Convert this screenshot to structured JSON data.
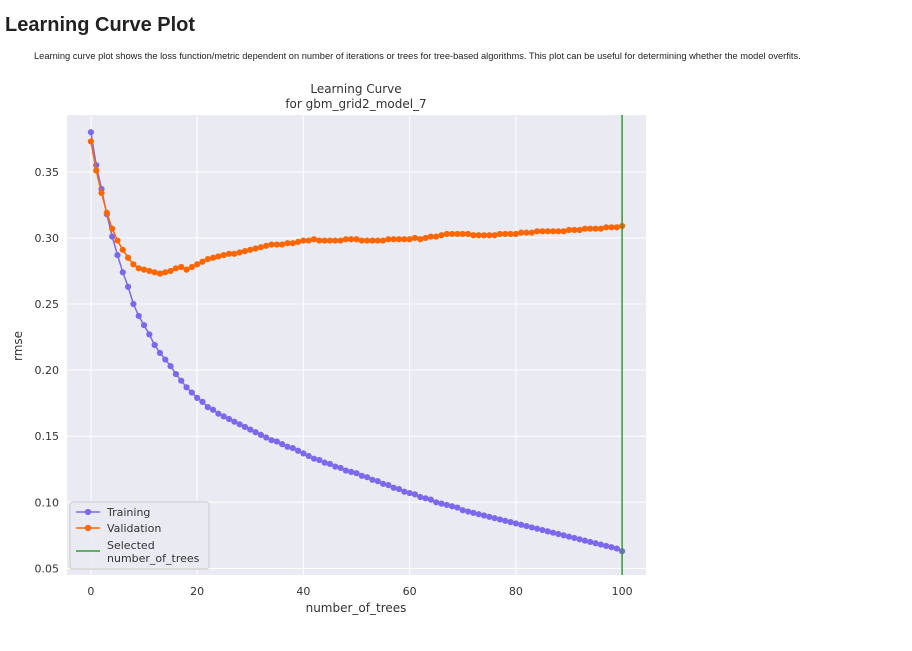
{
  "page": {
    "title": "Learning Curve Plot",
    "description": "Learning curve plot shows the loss function/metric dependent on number of iterations or trees for tree-based algorithms. This plot can be useful for determining whether the model overfits."
  },
  "chart_data": {
    "type": "line",
    "title": "Learning Curve",
    "subtitle": "for gbm_grid2_model_7",
    "xlabel": "number_of_trees",
    "ylabel": "rmse",
    "xlim": [
      -4.5,
      104.5
    ],
    "ylim": [
      0.045,
      0.393
    ],
    "xticks": [
      "0",
      "20",
      "40",
      "60",
      "80",
      "100"
    ],
    "yticks": [
      "0.05",
      "0.10",
      "0.15",
      "0.20",
      "0.25",
      "0.30",
      "0.35"
    ],
    "grid": true,
    "legend_position": "bottom-left",
    "selected_line": {
      "name": "Selected\nnumber_of_trees",
      "x": 100,
      "color": "#2ca02c"
    },
    "series": [
      {
        "name": "Training",
        "color": "#7b68ee",
        "x": [
          0,
          1,
          2,
          3,
          4,
          5,
          6,
          7,
          8,
          9,
          10,
          11,
          12,
          13,
          14,
          15,
          16,
          17,
          18,
          19,
          20,
          21,
          22,
          23,
          24,
          25,
          26,
          27,
          28,
          29,
          30,
          31,
          32,
          33,
          34,
          35,
          36,
          37,
          38,
          39,
          40,
          41,
          42,
          43,
          44,
          45,
          46,
          47,
          48,
          49,
          50,
          51,
          52,
          53,
          54,
          55,
          56,
          57,
          58,
          59,
          60,
          61,
          62,
          63,
          64,
          65,
          66,
          67,
          68,
          69,
          70,
          71,
          72,
          73,
          74,
          75,
          76,
          77,
          78,
          79,
          80,
          81,
          82,
          83,
          84,
          85,
          86,
          87,
          88,
          89,
          90,
          91,
          92,
          93,
          94,
          95,
          96,
          97,
          98,
          99,
          100
        ],
        "values": [
          0.38,
          0.355,
          0.337,
          0.318,
          0.301,
          0.287,
          0.274,
          0.263,
          0.25,
          0.241,
          0.234,
          0.227,
          0.219,
          0.213,
          0.208,
          0.203,
          0.197,
          0.192,
          0.187,
          0.183,
          0.179,
          0.176,
          0.172,
          0.17,
          0.167,
          0.165,
          0.163,
          0.161,
          0.159,
          0.157,
          0.155,
          0.153,
          0.151,
          0.149,
          0.147,
          0.146,
          0.144,
          0.142,
          0.141,
          0.139,
          0.137,
          0.135,
          0.133,
          0.132,
          0.13,
          0.129,
          0.127,
          0.126,
          0.124,
          0.123,
          0.122,
          0.12,
          0.119,
          0.117,
          0.116,
          0.114,
          0.113,
          0.111,
          0.11,
          0.108,
          0.107,
          0.106,
          0.104,
          0.103,
          0.102,
          0.1,
          0.099,
          0.098,
          0.097,
          0.096,
          0.094,
          0.093,
          0.092,
          0.091,
          0.09,
          0.089,
          0.088,
          0.087,
          0.086,
          0.085,
          0.084,
          0.083,
          0.082,
          0.081,
          0.08,
          0.079,
          0.078,
          0.077,
          0.076,
          0.075,
          0.074,
          0.073,
          0.072,
          0.071,
          0.07,
          0.069,
          0.068,
          0.067,
          0.066,
          0.065,
          0.063
        ]
      },
      {
        "name": "Validation",
        "color": "#ff6600",
        "x": [
          0,
          1,
          2,
          3,
          4,
          5,
          6,
          7,
          8,
          9,
          10,
          11,
          12,
          13,
          14,
          15,
          16,
          17,
          18,
          19,
          20,
          21,
          22,
          23,
          24,
          25,
          26,
          27,
          28,
          29,
          30,
          31,
          32,
          33,
          34,
          35,
          36,
          37,
          38,
          39,
          40,
          41,
          42,
          43,
          44,
          45,
          46,
          47,
          48,
          49,
          50,
          51,
          52,
          53,
          54,
          55,
          56,
          57,
          58,
          59,
          60,
          61,
          62,
          63,
          64,
          65,
          66,
          67,
          68,
          69,
          70,
          71,
          72,
          73,
          74,
          75,
          76,
          77,
          78,
          79,
          80,
          81,
          82,
          83,
          84,
          85,
          86,
          87,
          88,
          89,
          90,
          91,
          92,
          93,
          94,
          95,
          96,
          97,
          98,
          99,
          100
        ],
        "values": [
          0.373,
          0.351,
          0.334,
          0.319,
          0.307,
          0.298,
          0.291,
          0.285,
          0.28,
          0.277,
          0.276,
          0.275,
          0.274,
          0.273,
          0.274,
          0.275,
          0.277,
          0.278,
          0.276,
          0.278,
          0.28,
          0.282,
          0.284,
          0.285,
          0.286,
          0.287,
          0.288,
          0.288,
          0.289,
          0.29,
          0.291,
          0.292,
          0.293,
          0.294,
          0.295,
          0.295,
          0.295,
          0.296,
          0.296,
          0.297,
          0.298,
          0.298,
          0.299,
          0.298,
          0.298,
          0.298,
          0.298,
          0.298,
          0.299,
          0.299,
          0.299,
          0.298,
          0.298,
          0.298,
          0.298,
          0.298,
          0.299,
          0.299,
          0.299,
          0.299,
          0.299,
          0.3,
          0.299,
          0.3,
          0.301,
          0.301,
          0.302,
          0.303,
          0.303,
          0.303,
          0.303,
          0.303,
          0.302,
          0.302,
          0.302,
          0.302,
          0.302,
          0.303,
          0.303,
          0.303,
          0.303,
          0.304,
          0.304,
          0.304,
          0.305,
          0.305,
          0.305,
          0.305,
          0.305,
          0.305,
          0.306,
          0.306,
          0.306,
          0.307,
          0.307,
          0.307,
          0.307,
          0.308,
          0.308,
          0.308,
          0.309
        ]
      }
    ]
  }
}
